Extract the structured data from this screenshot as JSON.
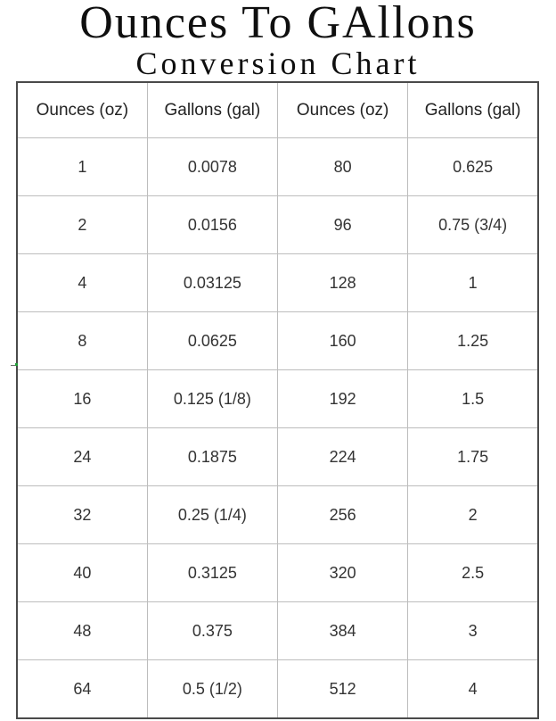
{
  "page": {
    "title": "Ounces To GAllons",
    "subtitle": "Conversion Chart"
  },
  "table": {
    "headers": [
      "Ounces (oz)",
      "Gallons (gal)",
      "Ounces (oz)",
      "Gallons (gal)"
    ],
    "rows": [
      [
        "1",
        "0.0078",
        "80",
        "0.625"
      ],
      [
        "2",
        "0.0156",
        "96",
        "0.75 (3/4)"
      ],
      [
        "4",
        "0.03125",
        "128",
        "1"
      ],
      [
        "8",
        "0.0625",
        "160",
        "1.25"
      ],
      [
        "16",
        "0.125 (1/8)",
        "192",
        "1.5"
      ],
      [
        "24",
        "0.1875",
        "224",
        "1.75"
      ],
      [
        "32",
        "0.25 (1/4)",
        "256",
        "2"
      ],
      [
        "40",
        "0.3125",
        "320",
        "2.5"
      ],
      [
        "48",
        "0.375",
        "384",
        "3"
      ],
      [
        "64",
        "0.5 (1/2)",
        "512",
        "4"
      ]
    ]
  },
  "chart_data": {
    "type": "table",
    "title": "Ounces To GAllons Conversion Chart",
    "columns": [
      "Ounces (oz)",
      "Gallons (gal)",
      "Ounces (oz)",
      "Gallons (gal)"
    ],
    "pairs": [
      {
        "ounces": 1,
        "gallons": "0.0078"
      },
      {
        "ounces": 2,
        "gallons": "0.0156"
      },
      {
        "ounces": 4,
        "gallons": "0.03125"
      },
      {
        "ounces": 8,
        "gallons": "0.0625"
      },
      {
        "ounces": 16,
        "gallons": "0.125 (1/8)"
      },
      {
        "ounces": 24,
        "gallons": "0.1875"
      },
      {
        "ounces": 32,
        "gallons": "0.25 (1/4)"
      },
      {
        "ounces": 40,
        "gallons": "0.3125"
      },
      {
        "ounces": 48,
        "gallons": "0.375"
      },
      {
        "ounces": 64,
        "gallons": "0.5 (1/2)"
      },
      {
        "ounces": 80,
        "gallons": "0.625"
      },
      {
        "ounces": 96,
        "gallons": "0.75 (3/4)"
      },
      {
        "ounces": 128,
        "gallons": "1"
      },
      {
        "ounces": 160,
        "gallons": "1.25"
      },
      {
        "ounces": 192,
        "gallons": "1.5"
      },
      {
        "ounces": 224,
        "gallons": "1.75"
      },
      {
        "ounces": 256,
        "gallons": "2"
      },
      {
        "ounces": 320,
        "gallons": "2.5"
      },
      {
        "ounces": 384,
        "gallons": "3"
      },
      {
        "ounces": 512,
        "gallons": "4"
      }
    ]
  },
  "colors": {
    "outer_border": "#4a4a4a",
    "inner_border": "#bdbdbd",
    "title_text": "#0f0f0f",
    "cell_text": "#333333",
    "artifact_green": "#21a038"
  }
}
